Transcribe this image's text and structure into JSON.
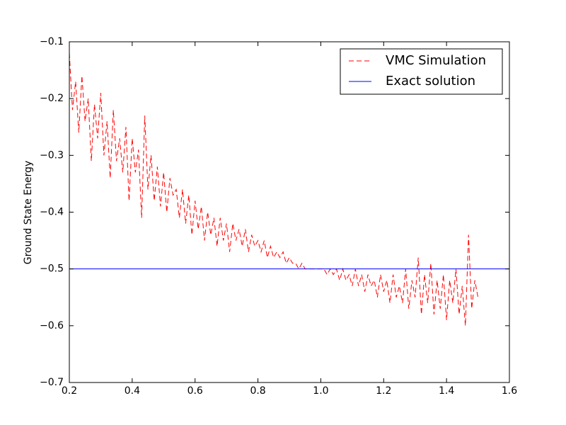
{
  "chart_data": {
    "type": "line",
    "y_label": "Ground State Energy",
    "xlim": [
      0.2,
      1.6
    ],
    "ylim": [
      -0.7,
      -0.1
    ],
    "xticks": [
      0.2,
      0.4,
      0.6,
      0.8,
      {
        "value": 1,
        "label": "1.0"
      },
      1.2,
      1.4,
      1.6
    ],
    "yticks": [
      {
        "value": -0.7,
        "label": "−0.7"
      },
      {
        "value": -0.6,
        "label": "−0.6"
      },
      {
        "value": -0.5,
        "label": "−0.5"
      },
      {
        "value": -0.4,
        "label": "−0.4"
      },
      {
        "value": -0.3,
        "label": "−0.3"
      },
      {
        "value": -0.2,
        "label": "−0.2"
      },
      {
        "value": -0.1,
        "label": "−0.1"
      }
    ],
    "legend": "upper right",
    "series": [
      {
        "name": "VMC Simulation",
        "color": "#ff0000",
        "dash": "dashed",
        "x": [
          0.2,
          0.21,
          0.22,
          0.23,
          0.24,
          0.25,
          0.26,
          0.27,
          0.28,
          0.29,
          0.3,
          0.31,
          0.32,
          0.33,
          0.34,
          0.35,
          0.36,
          0.37,
          0.38,
          0.39,
          0.4,
          0.41,
          0.42,
          0.43,
          0.44,
          0.45,
          0.46,
          0.47,
          0.48,
          0.49,
          0.5,
          0.51,
          0.52,
          0.53,
          0.54,
          0.55,
          0.56,
          0.57,
          0.58,
          0.59,
          0.6,
          0.61,
          0.62,
          0.63,
          0.64,
          0.65,
          0.66,
          0.67,
          0.68,
          0.69,
          0.7,
          0.71,
          0.72,
          0.73,
          0.74,
          0.75,
          0.76,
          0.77,
          0.78,
          0.79,
          0.8,
          0.81,
          0.82,
          0.83,
          0.84,
          0.85,
          0.86,
          0.87,
          0.88,
          0.89,
          0.9,
          0.91,
          0.92,
          0.93,
          0.94,
          0.95,
          0.96,
          0.97,
          0.98,
          0.99,
          1.0,
          1.01,
          1.02,
          1.03,
          1.04,
          1.05,
          1.06,
          1.07,
          1.08,
          1.09,
          1.1,
          1.11,
          1.12,
          1.13,
          1.14,
          1.15,
          1.16,
          1.17,
          1.18,
          1.19,
          1.2,
          1.21,
          1.22,
          1.23,
          1.24,
          1.25,
          1.26,
          1.27,
          1.28,
          1.29,
          1.3,
          1.31,
          1.32,
          1.33,
          1.34,
          1.35,
          1.36,
          1.37,
          1.38,
          1.39,
          1.4,
          1.41,
          1.42,
          1.43,
          1.44,
          1.45,
          1.46,
          1.47,
          1.48,
          1.49,
          1.5
        ],
        "values": [
          -0.12,
          -0.22,
          -0.17,
          -0.26,
          -0.16,
          -0.24,
          -0.2,
          -0.31,
          -0.21,
          -0.27,
          -0.19,
          -0.3,
          -0.24,
          -0.34,
          -0.22,
          -0.31,
          -0.27,
          -0.33,
          -0.25,
          -0.38,
          -0.27,
          -0.33,
          -0.29,
          -0.41,
          -0.23,
          -0.36,
          -0.3,
          -0.38,
          -0.32,
          -0.39,
          -0.33,
          -0.4,
          -0.34,
          -0.37,
          -0.36,
          -0.41,
          -0.36,
          -0.42,
          -0.37,
          -0.44,
          -0.38,
          -0.43,
          -0.39,
          -0.45,
          -0.4,
          -0.44,
          -0.41,
          -0.46,
          -0.41,
          -0.45,
          -0.42,
          -0.47,
          -0.42,
          -0.45,
          -0.43,
          -0.46,
          -0.43,
          -0.47,
          -0.44,
          -0.46,
          -0.45,
          -0.47,
          -0.45,
          -0.48,
          -0.46,
          -0.48,
          -0.47,
          -0.48,
          -0.47,
          -0.49,
          -0.48,
          -0.49,
          -0.49,
          -0.5,
          -0.49,
          -0.5,
          -0.5,
          -0.5,
          -0.5,
          -0.5,
          -0.5,
          -0.5,
          -0.51,
          -0.5,
          -0.51,
          -0.5,
          -0.52,
          -0.5,
          -0.52,
          -0.51,
          -0.53,
          -0.5,
          -0.53,
          -0.51,
          -0.54,
          -0.51,
          -0.53,
          -0.52,
          -0.55,
          -0.51,
          -0.54,
          -0.52,
          -0.56,
          -0.51,
          -0.55,
          -0.53,
          -0.56,
          -0.5,
          -0.57,
          -0.52,
          -0.55,
          -0.48,
          -0.58,
          -0.51,
          -0.56,
          -0.49,
          -0.58,
          -0.52,
          -0.57,
          -0.51,
          -0.59,
          -0.52,
          -0.56,
          -0.5,
          -0.58,
          -0.53,
          -0.6,
          -0.44,
          -0.57,
          -0.52,
          -0.55
        ]
      },
      {
        "name": "Exact solution",
        "color": "#0000ff",
        "dash": "solid",
        "x": [
          0.2,
          1.6
        ],
        "values": [
          -0.5,
          -0.5
        ]
      }
    ]
  }
}
